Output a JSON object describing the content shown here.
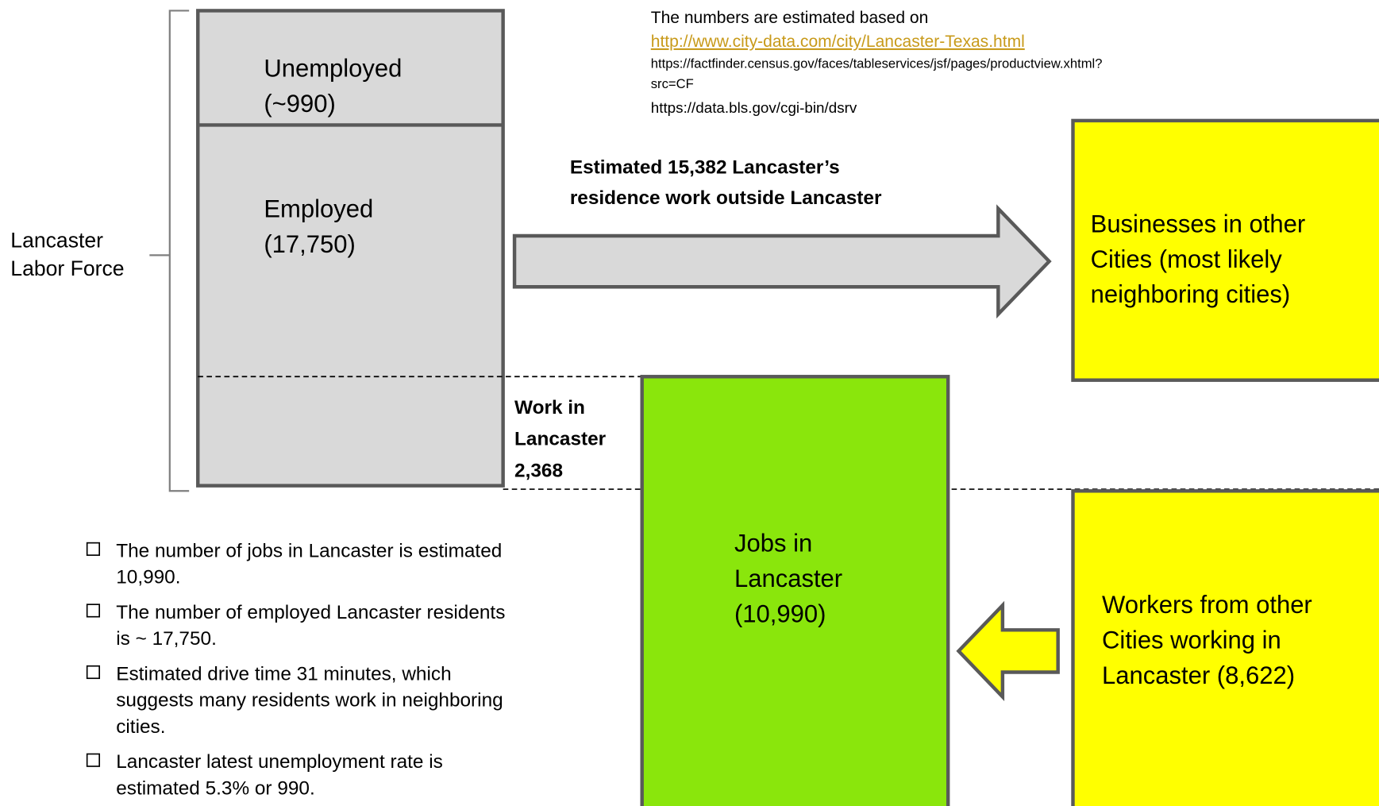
{
  "labor_force": {
    "label": [
      "Lancaster",
      "Labor Force"
    ]
  },
  "unemployed": {
    "label": [
      "Unemployed",
      "(~990)"
    ]
  },
  "employed": {
    "label": [
      "Employed",
      "(17,750)"
    ]
  },
  "sources": {
    "intro": "The numbers are estimated based on",
    "link": "http://www.city-data.com/city/Lancaster-Texas.html",
    "urls": [
      "https://factfinder.census.gov/faces/tableservices/jsf/pages/productview.xhtml?",
      "src=CF",
      "https://data.bls.gov/cgi-bin/dsrv"
    ]
  },
  "outflow": {
    "label": [
      "Estimated 15,382 Lancaster’s",
      "residence work outside Lancaster"
    ]
  },
  "other_businesses": {
    "label": [
      "Businesses in other",
      "Cities (most likely",
      "neighboring cities)"
    ]
  },
  "work_in_lancaster": {
    "label": [
      "Work in",
      "Lancaster",
      "2,368"
    ]
  },
  "jobs": {
    "label": [
      "Jobs in",
      "Lancaster",
      "(10,990)"
    ]
  },
  "inflow": {
    "label": [
      "Workers from other",
      "Cities working in",
      "Lancaster (8,622)"
    ]
  },
  "bullets": [
    [
      "The number of jobs in Lancaster is estimated",
      "10,990."
    ],
    [
      "The number of employed Lancaster residents",
      "is ~ 17,750."
    ],
    [
      "Estimated drive time 31 minutes, which",
      "suggests many residents work in neighboring",
      "cities."
    ],
    [
      "Lancaster latest unemployment rate is",
      "estimated 5.3% or 990."
    ]
  ]
}
